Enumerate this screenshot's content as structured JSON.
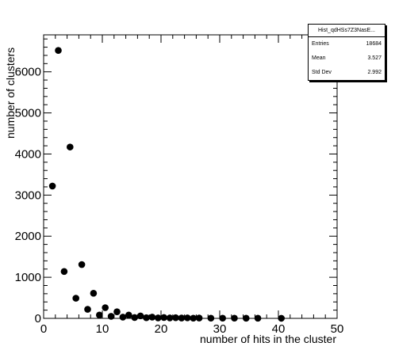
{
  "chart_data": {
    "type": "scatter",
    "title": "",
    "xlabel": "number of hits in the cluster",
    "ylabel": "number of clusters",
    "xlim": [
      0,
      50
    ],
    "ylim": [
      0,
      6900
    ],
    "x_ticks": [
      "0",
      "10",
      "20",
      "30",
      "40",
      "50"
    ],
    "y_ticks": [
      "0",
      "1000",
      "2000",
      "3000",
      "4000",
      "5000",
      "6000"
    ],
    "grid": false,
    "series": [
      {
        "x": [
          1.5,
          2.5,
          3.5,
          4.5,
          5.5,
          6.5,
          7.5,
          8.5,
          9.5,
          10.5,
          11.5,
          12.5,
          13.5,
          14.5,
          15.5,
          16.5,
          17.5,
          18.5,
          19.5,
          20.5,
          21.5,
          22.5,
          23.5,
          24.5,
          25.5,
          26.5,
          28.5,
          30.5,
          32.5,
          34.5,
          36.5,
          40.5
        ],
        "y": [
          3220,
          6520,
          1140,
          4170,
          490,
          1310,
          220,
          610,
          80,
          260,
          50,
          160,
          30,
          80,
          20,
          60,
          15,
          30,
          10,
          20,
          10,
          15,
          8,
          12,
          5,
          8,
          5,
          5,
          5,
          3,
          3,
          2
        ]
      }
    ]
  },
  "stats_box": {
    "title": "Hist_qdHSs7Z3NasE...",
    "rows": [
      {
        "label": "Entries",
        "value": "18684"
      },
      {
        "label": "Mean",
        "value": "3.527"
      },
      {
        "label": "Std Dev",
        "value": "2.992"
      }
    ]
  }
}
